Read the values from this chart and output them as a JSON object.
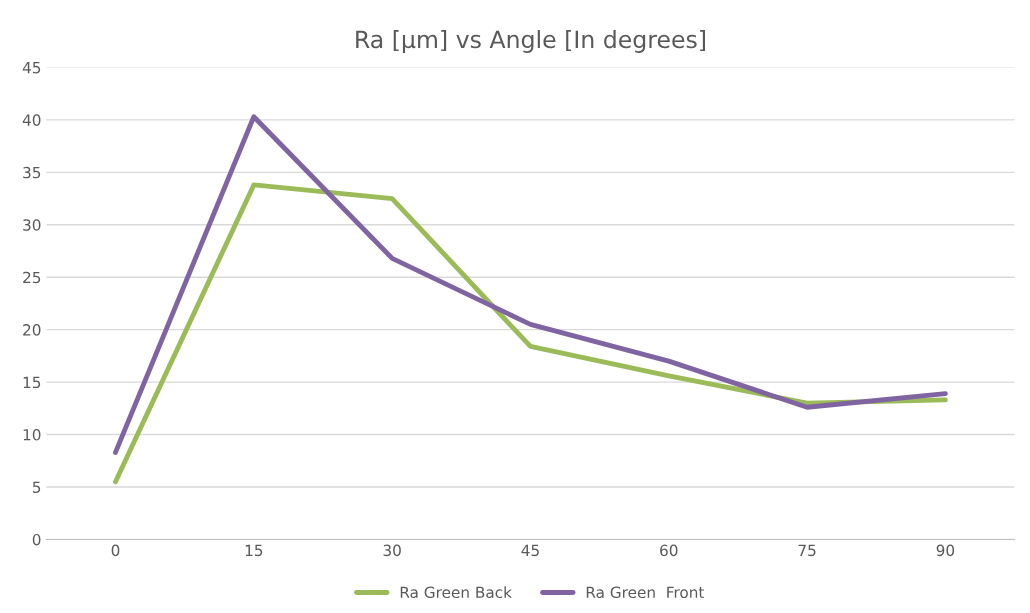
{
  "chart_data": {
    "type": "line",
    "title": "Ra [µm] vs Angle [In degrees]",
    "categories": [
      "0",
      "15",
      "30",
      "45",
      "60",
      "75",
      "90"
    ],
    "series": [
      {
        "name": "Ra Green Back",
        "color": "#9bbb59",
        "values": [
          5.5,
          33.8,
          32.5,
          18.4,
          15.6,
          13.0,
          13.3
        ]
      },
      {
        "name": "Ra Green  Front",
        "color": "#8064a2",
        "values": [
          8.3,
          40.3,
          26.8,
          20.5,
          17.0,
          12.6,
          13.9
        ]
      }
    ],
    "ylim": [
      0,
      45
    ],
    "yticks": [
      0,
      5,
      10,
      15,
      20,
      25,
      30,
      35,
      40,
      45
    ],
    "grid": "y",
    "legend": "bottom",
    "marker": "none",
    "line_style": "solid"
  }
}
